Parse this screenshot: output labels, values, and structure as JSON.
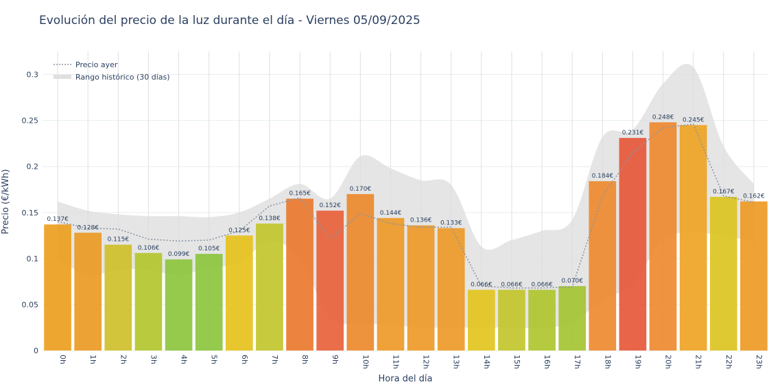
{
  "chart_data": {
    "type": "bar",
    "title": "Evolución del precio de la luz durante el día - Viernes 05/09/2025",
    "xlabel": "Hora del día",
    "ylabel": "Precio (€/kWh)",
    "ylim": [
      0,
      0.325
    ],
    "yticks": [
      0,
      0.05,
      0.1,
      0.15,
      0.2,
      0.25,
      0.3
    ],
    "ytick_labels": [
      "0",
      "0.05",
      "0.1",
      "0.15",
      "0.2",
      "0.25",
      "0.3"
    ],
    "grid": true,
    "legend_position": "top-left",
    "categories": [
      "0h",
      "1h",
      "2h",
      "3h",
      "4h",
      "5h",
      "6h",
      "7h",
      "8h",
      "9h",
      "10h",
      "11h",
      "12h",
      "13h",
      "14h",
      "15h",
      "16h",
      "17h",
      "18h",
      "19h",
      "20h",
      "21h",
      "22h",
      "23h"
    ],
    "values": [
      0.137,
      0.128,
      0.115,
      0.106,
      0.099,
      0.105,
      0.125,
      0.138,
      0.165,
      0.152,
      0.17,
      0.144,
      0.136,
      0.133,
      0.066,
      0.066,
      0.066,
      0.07,
      0.184,
      0.231,
      0.248,
      0.245,
      0.167,
      0.162
    ],
    "value_labels": [
      "0.137€",
      "0.128€",
      "0.115€",
      "0.106€",
      "0.099€",
      "0.105€",
      "0.125€",
      "0.138€",
      "0.165€",
      "0.152€",
      "0.170€",
      "0.144€",
      "0.136€",
      "0.133€",
      "0.066€",
      "0.066€",
      "0.066€",
      "0.070€",
      "0.184€",
      "0.231€",
      "0.248€",
      "0.245€",
      "0.167€",
      "0.162€"
    ],
    "bar_colors": [
      "#eba020",
      "#ea9a24",
      "#cec02a",
      "#b4c62e",
      "#8cc63e",
      "#8cc63e",
      "#e6c21c",
      "#c2c62c",
      "#ea7a30",
      "#e8623a",
      "#ec8a2c",
      "#ee9a28",
      "#ee9a28",
      "#ee9a28",
      "#e2c61e",
      "#c2c62c",
      "#b0c630",
      "#a4c432",
      "#ee8a30",
      "#e6583a",
      "#ee8a30",
      "#eea424",
      "#dcc422",
      "#ee9a24"
    ],
    "series": [
      {
        "name": "Precio ayer",
        "style": "dotted-line",
        "color": "#8a96a4",
        "values": [
          0.14,
          0.133,
          0.132,
          0.121,
          0.119,
          0.12,
          0.13,
          0.157,
          0.166,
          0.121,
          0.149,
          0.138,
          0.134,
          0.134,
          0.07,
          0.068,
          0.068,
          0.069,
          0.168,
          0.215,
          0.242,
          0.246,
          0.168,
          0.161
        ]
      },
      {
        "name": "Rango histórico (30 días)",
        "style": "band",
        "color": "#dcdcdc",
        "upper": [
          0.162,
          0.152,
          0.148,
          0.146,
          0.146,
          0.145,
          0.15,
          0.165,
          0.181,
          0.165,
          0.211,
          0.198,
          0.185,
          0.18,
          0.113,
          0.12,
          0.13,
          0.142,
          0.232,
          0.24,
          0.29,
          0.308,
          0.222,
          0.181
        ],
        "lower": [
          0.1,
          0.082,
          0.088,
          0.088,
          0.082,
          0.09,
          0.095,
          0.119,
          0.1,
          0.035,
          0.03,
          0.028,
          0.025,
          0.025,
          0.025,
          0.025,
          0.025,
          0.03,
          0.055,
          0.072,
          0.121,
          0.128,
          0.125,
          0.118
        ]
      }
    ]
  }
}
